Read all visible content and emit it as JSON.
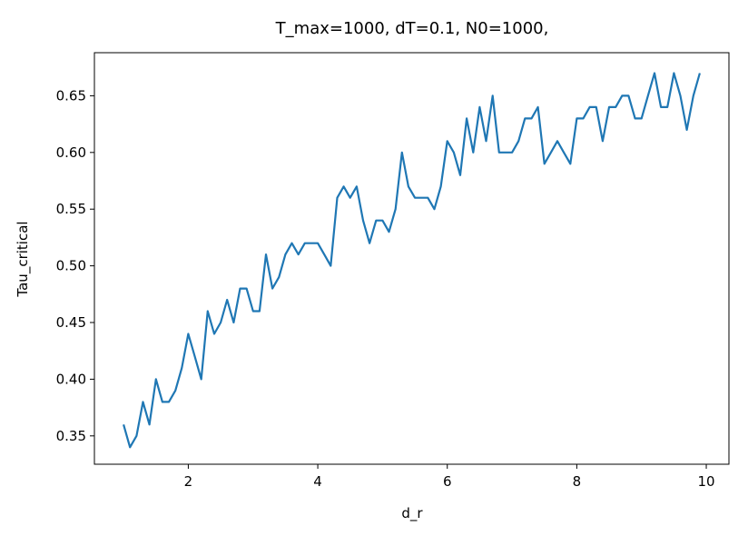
{
  "chart_data": {
    "type": "line",
    "title": "T_max=1000, dT=0.1, N0=1000,",
    "xlabel": "d_r",
    "ylabel": "Tau_critical",
    "xlim": [
      0.55,
      10.35
    ],
    "ylim": [
      0.325,
      0.688
    ],
    "xticks": [
      2,
      4,
      6,
      8,
      10
    ],
    "xtick_labels": [
      "2",
      "4",
      "6",
      "8",
      "10"
    ],
    "yticks": [
      0.35,
      0.4,
      0.45,
      0.5,
      0.55,
      0.6,
      0.65
    ],
    "ytick_labels": [
      "0.35",
      "0.40",
      "0.45",
      "0.50",
      "0.55",
      "0.60",
      "0.65"
    ],
    "grid": false,
    "series_color": "#1f77b4",
    "series": [
      {
        "x": [
          1.0,
          1.1,
          1.2,
          1.3,
          1.4,
          1.5,
          1.6,
          1.7,
          1.8,
          1.9,
          2.0,
          2.1,
          2.2,
          2.3,
          2.4,
          2.5,
          2.6,
          2.7,
          2.8,
          2.9,
          3.0,
          3.1,
          3.2,
          3.3,
          3.4,
          3.5,
          3.6,
          3.7,
          3.8,
          3.9,
          4.0,
          4.1,
          4.2,
          4.3,
          4.4,
          4.5,
          4.6,
          4.7,
          4.8,
          4.9,
          5.0,
          5.1,
          5.2,
          5.3,
          5.4,
          5.5,
          5.6,
          5.7,
          5.8,
          5.9,
          6.0,
          6.1,
          6.2,
          6.3,
          6.4,
          6.5,
          6.6,
          6.7,
          6.8,
          6.9,
          7.0,
          7.1,
          7.2,
          7.3,
          7.4,
          7.5,
          7.6,
          7.7,
          7.8,
          7.9,
          8.0,
          8.1,
          8.2,
          8.3,
          8.4,
          8.5,
          8.6,
          8.7,
          8.8,
          8.9,
          9.0,
          9.1,
          9.2,
          9.3,
          9.4,
          9.5,
          9.6,
          9.7,
          9.8,
          9.9
        ],
        "values": [
          0.36,
          0.34,
          0.35,
          0.38,
          0.36,
          0.4,
          0.38,
          0.38,
          0.39,
          0.41,
          0.44,
          0.42,
          0.4,
          0.46,
          0.44,
          0.45,
          0.47,
          0.45,
          0.48,
          0.48,
          0.46,
          0.46,
          0.51,
          0.48,
          0.49,
          0.51,
          0.52,
          0.51,
          0.52,
          0.52,
          0.52,
          0.51,
          0.5,
          0.56,
          0.57,
          0.56,
          0.57,
          0.54,
          0.52,
          0.54,
          0.54,
          0.53,
          0.55,
          0.6,
          0.57,
          0.56,
          0.56,
          0.56,
          0.55,
          0.57,
          0.61,
          0.6,
          0.58,
          0.63,
          0.6,
          0.64,
          0.61,
          0.65,
          0.6,
          0.6,
          0.6,
          0.61,
          0.63,
          0.63,
          0.64,
          0.59,
          0.6,
          0.61,
          0.6,
          0.59,
          0.63,
          0.63,
          0.64,
          0.64,
          0.61,
          0.64,
          0.64,
          0.65,
          0.65,
          0.63,
          0.63,
          0.65,
          0.67,
          0.64,
          0.64,
          0.67,
          0.65,
          0.62,
          0.65,
          0.67
        ]
      }
    ]
  }
}
